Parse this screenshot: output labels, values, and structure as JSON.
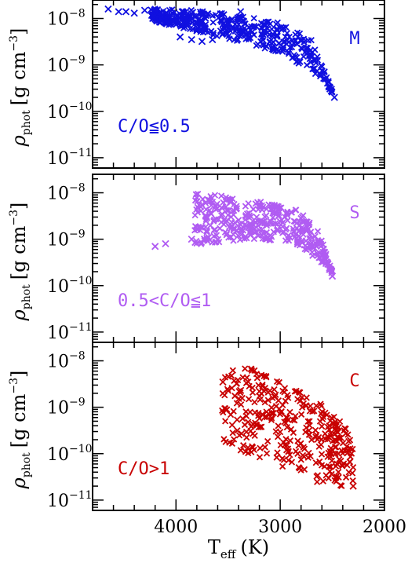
{
  "chart_data": {
    "type": "scatter",
    "marker": "x",
    "x_axis": {
      "label": "T",
      "label_subscript": "eff",
      "label_unit": "(K)",
      "range": [
        4800,
        2000
      ],
      "ticks": [
        {
          "value": 4000,
          "label": "4000"
        },
        {
          "value": 3000,
          "label": "3000"
        },
        {
          "value": 2000,
          "label": "2000"
        }
      ]
    },
    "y_axis": {
      "label_symbol": "ρ",
      "label_subscript": "phot",
      "label_unit_open": "[g cm",
      "label_unit_exp": "−3",
      "label_unit_close": "]",
      "scale": "log",
      "range": [
        6e-12,
        2.5e-08
      ],
      "ticks": [
        {
          "value": 1e-08,
          "base": "10",
          "exp": "−8"
        },
        {
          "value": 1e-09,
          "base": "10",
          "exp": "−9"
        },
        {
          "value": 1e-10,
          "base": "10",
          "exp": "−10"
        },
        {
          "value": 1e-11,
          "base": "10",
          "exp": "−11"
        }
      ]
    },
    "panels": [
      {
        "type_label": "M",
        "ratio_label": "C/O≦0.5",
        "color": "#1010e0",
        "upper_edge": [
          [
            4650,
            1.6e-08
          ],
          [
            4200,
            1.6e-08
          ],
          [
            3800,
            1.5e-08
          ],
          [
            3400,
            1.2e-08
          ],
          [
            3000,
            8e-09
          ],
          [
            2700,
            3.5e-09
          ],
          [
            2480,
            2.2e-10
          ]
        ],
        "lower_edge": [
          [
            4250,
            9e-09
          ],
          [
            3900,
            6e-09
          ],
          [
            3600,
            4e-09
          ],
          [
            3200,
            2.5e-09
          ],
          [
            2900,
            1.4e-09
          ],
          [
            2700,
            7e-10
          ],
          [
            2500,
            2.5e-10
          ]
        ],
        "outliers": [
          [
            4650,
            1.6e-08
          ],
          [
            4550,
            1.4e-08
          ],
          [
            4480,
            1.4e-08
          ],
          [
            4400,
            1.3e-08
          ],
          [
            4300,
            1.5e-08
          ],
          [
            4200,
            1.2e-08
          ],
          [
            4150,
            1e-08
          ],
          [
            3960,
            4e-09
          ],
          [
            3850,
            3.5e-09
          ],
          [
            3750,
            3.2e-09
          ],
          [
            3650,
            3.5e-09
          ],
          [
            3380,
            1.4e-08
          ],
          [
            2480,
            2e-10
          ]
        ]
      },
      {
        "type_label": "S",
        "ratio_label": "0.5<C/O≦1",
        "color": "#b05cf2",
        "upper_edge": [
          [
            3820,
            1.1e-08
          ],
          [
            3500,
            9e-09
          ],
          [
            3100,
            6e-09
          ],
          [
            2800,
            4e-09
          ],
          [
            2650,
            2e-09
          ],
          [
            2500,
            2e-10
          ]
        ],
        "lower_edge": [
          [
            4300,
            7e-10
          ],
          [
            4000,
            6e-10
          ],
          [
            3700,
            8e-10
          ],
          [
            3300,
            1e-09
          ],
          [
            3000,
            9e-10
          ],
          [
            2800,
            7e-10
          ],
          [
            2600,
            3e-10
          ],
          [
            2500,
            1.8e-10
          ]
        ],
        "outliers": [
          [
            3620,
            5e-09
          ],
          [
            3850,
            1e-09
          ],
          [
            4200,
            7e-10
          ],
          [
            4100,
            8e-10
          ],
          [
            2500,
            1.6e-10
          ]
        ]
      },
      {
        "type_label": "C",
        "ratio_label": "C/O>1",
        "color": "#c80000",
        "upper_edge": [
          [
            3560,
            8e-09
          ],
          [
            3200,
            6.5e-09
          ],
          [
            2900,
            3e-09
          ],
          [
            2600,
            1.2e-09
          ],
          [
            2400,
            5e-10
          ],
          [
            2300,
            1.5e-10
          ]
        ],
        "lower_edge": [
          [
            4200,
            6e-10
          ],
          [
            3800,
            3e-10
          ],
          [
            3400,
            1.2e-10
          ],
          [
            3100,
            6e-11
          ],
          [
            2800,
            3e-11
          ],
          [
            2500,
            2e-11
          ],
          [
            2300,
            2e-11
          ]
        ],
        "outliers": [
          [
            3550,
            3.5e-09
          ],
          [
            3380,
            2.3e-09
          ],
          [
            3200,
            2.2e-09
          ],
          [
            2300,
            2e-11
          ]
        ]
      }
    ]
  }
}
